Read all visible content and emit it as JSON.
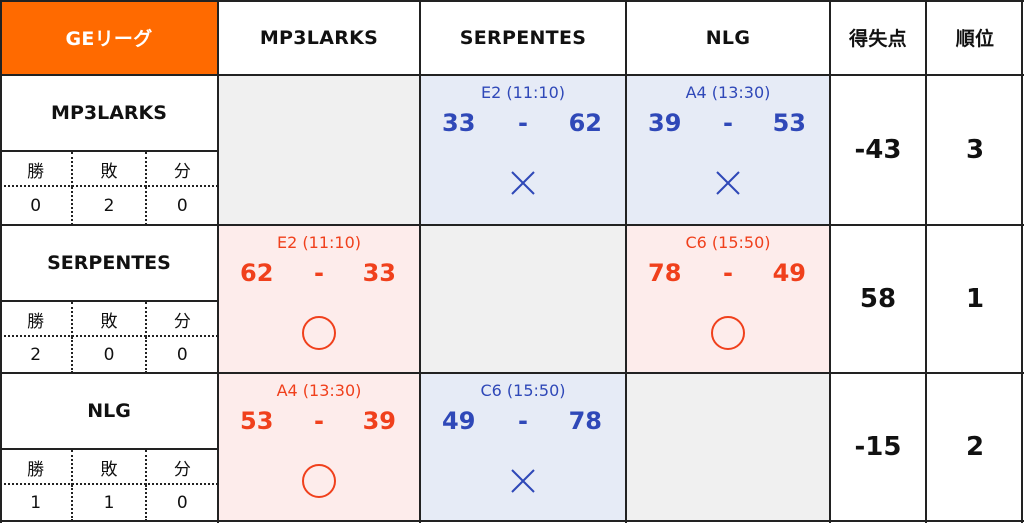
{
  "league": "GEリーグ",
  "columns": {
    "teams": [
      "MP3LARKS",
      "SERPENTES",
      "NLG"
    ],
    "points": "得失点",
    "rank": "順位"
  },
  "record_labels": {
    "win": "勝",
    "loss": "敗",
    "draw": "分"
  },
  "teams": [
    {
      "name": "MP3LARKS",
      "record": {
        "win": "0",
        "loss": "2",
        "draw": "0"
      },
      "point_diff": "-43",
      "rank": "3",
      "matches": [
        null,
        {
          "slot": "E2 (11:10)",
          "score_for": "33",
          "dash": "-",
          "score_against": "62",
          "result": "lose"
        },
        {
          "slot": "A4 (13:30)",
          "score_for": "39",
          "dash": "-",
          "score_against": "53",
          "result": "lose"
        }
      ]
    },
    {
      "name": "SERPENTES",
      "record": {
        "win": "2",
        "loss": "0",
        "draw": "0"
      },
      "point_diff": "58",
      "rank": "1",
      "matches": [
        {
          "slot": "E2 (11:10)",
          "score_for": "62",
          "dash": "-",
          "score_against": "33",
          "result": "win"
        },
        null,
        {
          "slot": "C6 (15:50)",
          "score_for": "78",
          "dash": "-",
          "score_against": "49",
          "result": "win"
        }
      ]
    },
    {
      "name": "NLG",
      "record": {
        "win": "1",
        "loss": "1",
        "draw": "0"
      },
      "point_diff": "-15",
      "rank": "2",
      "matches": [
        {
          "slot": "A4 (13:30)",
          "score_for": "53",
          "dash": "-",
          "score_against": "39",
          "result": "win"
        },
        {
          "slot": "C6 (15:50)",
          "score_for": "49",
          "dash": "-",
          "score_against": "78",
          "result": "lose"
        },
        null
      ]
    }
  ],
  "colors": {
    "league_header": "#ff6a00",
    "win_text": "#f0401c",
    "lose_text": "#2f48b8",
    "win_bg": "#fdeceb",
    "lose_bg": "#e6ebf6",
    "blank_bg": "#f0f0f0"
  },
  "icons": {
    "win": "circle-icon",
    "lose": "cross-icon"
  }
}
